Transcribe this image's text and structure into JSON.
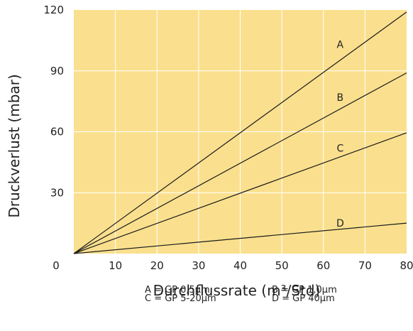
{
  "chart_data": {
    "type": "line",
    "xlabel": "Durchflussrate (m³/Std)",
    "ylabel": "Druckverlust (mbar)",
    "xlim": [
      0,
      80
    ],
    "ylim": [
      0,
      120
    ],
    "x_ticks": [
      {
        "value": 10,
        "label": "10"
      },
      {
        "value": 20,
        "label": "20"
      },
      {
        "value": 30,
        "label": "30"
      },
      {
        "value": 40,
        "label": "40"
      },
      {
        "value": 50,
        "label": "50"
      },
      {
        "value": 60,
        "label": "60"
      },
      {
        "value": 70,
        "label": "70"
      },
      {
        "value": 80,
        "label": "80"
      }
    ],
    "y_ticks": [
      {
        "value": 30,
        "label": "30"
      },
      {
        "value": 60,
        "label": "60"
      },
      {
        "value": 90,
        "label": "90"
      },
      {
        "value": 120,
        "label": "120"
      }
    ],
    "origin_label": "0",
    "grid": true,
    "colors": {
      "plot_bg": "#fae08e",
      "grid": "#ffffff",
      "line": "#1a1a1a"
    },
    "series": [
      {
        "name": "A",
        "x": [
          0,
          80
        ],
        "y": [
          0,
          119
        ],
        "label_at": [
          63,
          103
        ]
      },
      {
        "name": "B",
        "x": [
          0,
          80
        ],
        "y": [
          0,
          89
        ],
        "label_at": [
          63,
          77
        ]
      },
      {
        "name": "C",
        "x": [
          0,
          80
        ],
        "y": [
          0,
          59.5
        ],
        "label_at": [
          63,
          52
        ]
      },
      {
        "name": "D",
        "x": [
          0,
          80
        ],
        "y": [
          0,
          15
        ],
        "label_at": [
          63,
          15
        ]
      }
    ],
    "legend": [
      [
        "A  = GP 0,5µm",
        "B  = GP 1,0µm"
      ],
      [
        "C  = GP 5-20µm",
        "D  = GP 40µm"
      ]
    ]
  }
}
